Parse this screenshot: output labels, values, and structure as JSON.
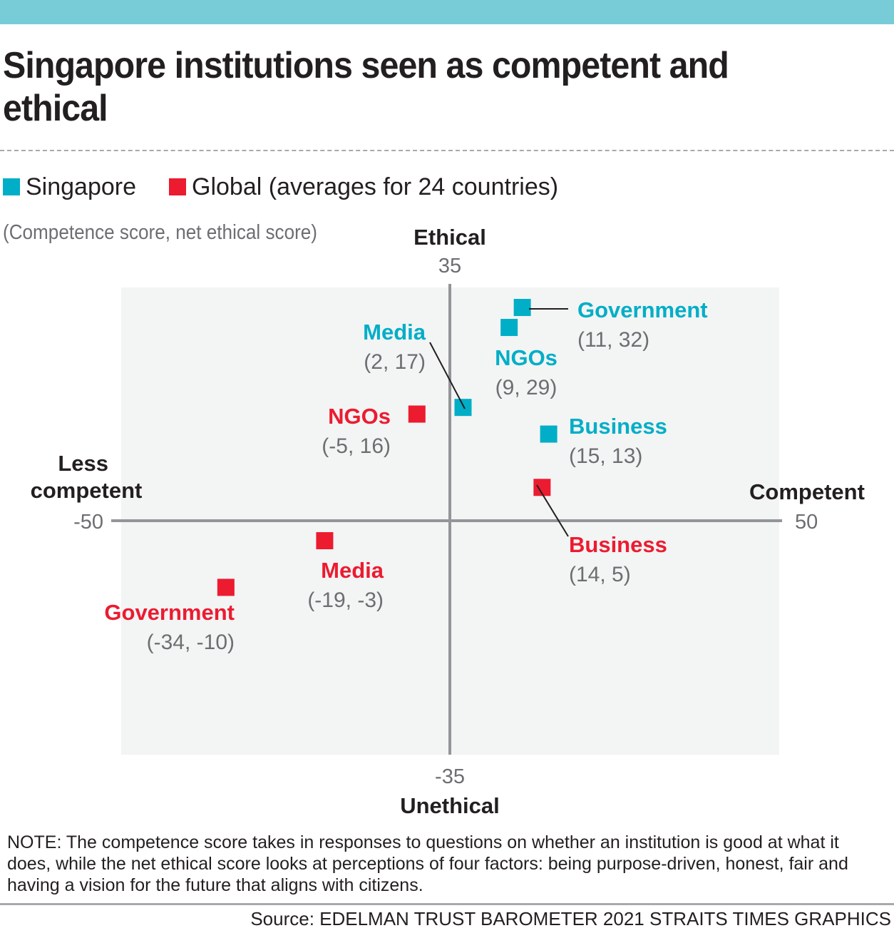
{
  "header": {
    "title": "Singapore institutions seen as competent and ethical"
  },
  "legend": [
    {
      "label": "Singapore",
      "color": "#00aec7"
    },
    {
      "label": "Global (averages for 24 countries)",
      "color": "#ec1b30"
    }
  ],
  "subtitle": "(Competence score, net ethical score)",
  "chart_data": {
    "type": "scatter",
    "title": "Singapore institutions seen as competent and ethical",
    "subtitle": "(Competence score, net ethical score)",
    "xlabel_left": "Less competent",
    "xlabel_right": "Competent",
    "ylabel_top": "Ethical",
    "ylabel_bottom": "Unethical",
    "xlim": [
      -50,
      50
    ],
    "ylim": [
      -35,
      35
    ],
    "x_tick_labels": [
      "-50",
      "50"
    ],
    "y_tick_labels": [
      "35",
      "-35"
    ],
    "grid": false,
    "legend_position": "top-left",
    "series": [
      {
        "name": "Singapore",
        "color": "#00aec7",
        "points": [
          {
            "label": "Government",
            "x": 11,
            "y": 32,
            "text": "(11, 32)"
          },
          {
            "label": "NGOs",
            "x": 9,
            "y": 29,
            "text": "(9, 29)"
          },
          {
            "label": "Media",
            "x": 2,
            "y": 17,
            "text": "(2, 17)"
          },
          {
            "label": "Business",
            "x": 15,
            "y": 13,
            "text": "(15, 13)"
          }
        ]
      },
      {
        "name": "Global (averages for 24 countries)",
        "color": "#ec1b30",
        "points": [
          {
            "label": "NGOs",
            "x": -5,
            "y": 16,
            "text": "(-5, 16)"
          },
          {
            "label": "Business",
            "x": 14,
            "y": 5,
            "text": "(14, 5)"
          },
          {
            "label": "Media",
            "x": -19,
            "y": -3,
            "text": "(-19, -3)"
          },
          {
            "label": "Government",
            "x": -34,
            "y": -10,
            "text": "(-34, -10)"
          }
        ]
      }
    ]
  },
  "note": "NOTE: The competence score takes in responses to questions on whether an institution is good at what it does, while the net ethical score looks at perceptions of four factors: being purpose-driven, honest, fair and having a vision for the future that aligns with citizens.",
  "source": "Source: EDELMAN TRUST BAROMETER 2021   STRAITS TIMES GRAPHICS"
}
